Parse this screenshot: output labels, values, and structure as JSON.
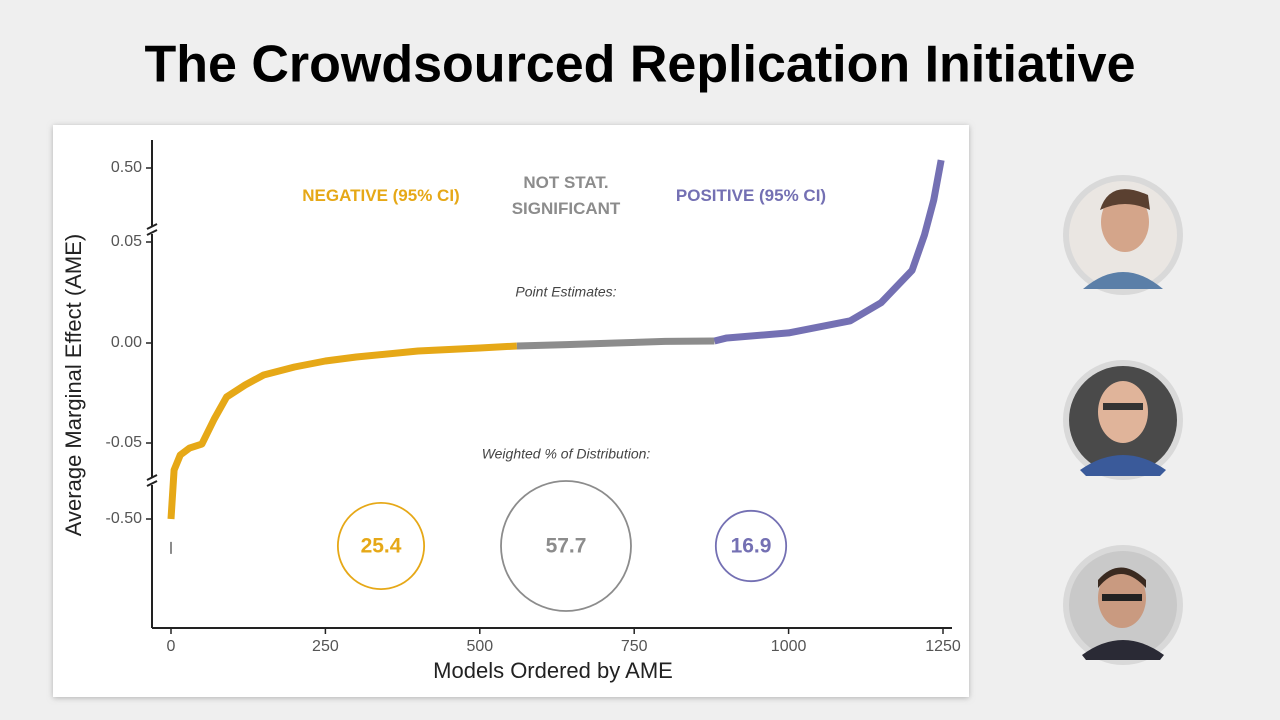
{
  "title": "The Crowdsourced Replication Initiative",
  "chart_data": {
    "type": "line",
    "x_label": "Models Ordered by AME",
    "y_label": "Average Marginal Effect (AME)",
    "xlim": [
      -30,
      1265
    ],
    "xticks": [
      0,
      250,
      500,
      750,
      1000,
      1250
    ],
    "ylim": [
      -0.75,
      0.55
    ],
    "yticks": [
      {
        "value": -0.5,
        "label": "-0.50"
      },
      {
        "value": -0.05,
        "label": "-0.05"
      },
      {
        "value": 0,
        "label": "0.00"
      },
      {
        "value": 0.05,
        "label": "0.05"
      },
      {
        "value": 0.5,
        "label": "0.50"
      }
    ],
    "point_label": "Point Estimates:",
    "series": [
      {
        "name": "NEGATIVE (95% CI)",
        "color": "#e6a817",
        "x": [
          0,
          5,
          15,
          30,
          50,
          70,
          90,
          120,
          150,
          200,
          250,
          300,
          400,
          500,
          560
        ],
        "values": [
          -0.5,
          -0.21,
          -0.121,
          -0.08,
          -0.056,
          -0.038,
          -0.027,
          -0.021,
          -0.016,
          -0.012,
          -0.009,
          -0.007,
          -0.004,
          -0.0025,
          -0.0015
        ]
      },
      {
        "name": "NOT STAT. SIGNIFICANT",
        "color": "#8c8c8c",
        "x": [
          0,
          null,
          560,
          640,
          720,
          800,
          880
        ],
        "values": [
          -0.58,
          null,
          -0.0015,
          -0.0008,
          0,
          0.0008,
          0.001
        ]
      },
      {
        "name": "POSITIVE (95% CI)",
        "color": "#7470b3",
        "x": [
          880,
          900,
          1000,
          1100,
          1150,
          1200,
          1220,
          1235,
          1247
        ],
        "values": [
          0.001,
          0.0025,
          0.005,
          0.011,
          0.02,
          0.036,
          0.093,
          0.305,
          0.514
        ]
      }
    ],
    "distribution": {
      "label": "Weighted % of Distribution:",
      "values": [
        25.4,
        57.7,
        16.9
      ]
    }
  }
}
